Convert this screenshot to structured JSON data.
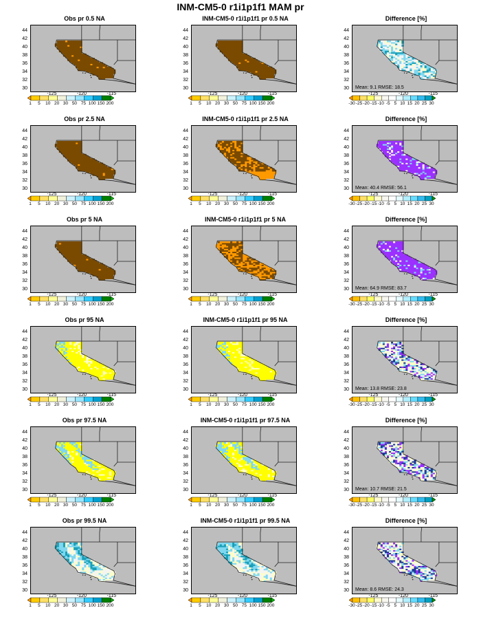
{
  "title": "INM-CM5-0 r1i1p1f1 MAM pr",
  "map_ticks": {
    "lat": [
      "44",
      "42",
      "40",
      "38",
      "36",
      "34",
      "32",
      "30"
    ],
    "lon": [
      "-125",
      "-120",
      "-115"
    ]
  },
  "colorbars": {
    "pr": {
      "labels": [
        "1",
        "5",
        "10",
        "20",
        "30",
        "50",
        "75",
        "100",
        "150",
        "200"
      ],
      "colors": [
        "#ff9900",
        "#ffcc00",
        "#ffe066",
        "#ffff99",
        "#f2f2dc",
        "#ccf2ff",
        "#99e6ff",
        "#33ccff",
        "#00a0d0",
        "#008000",
        "#00b000"
      ]
    },
    "diff": {
      "labels": [
        "-30",
        "-25",
        "-20",
        "-15",
        "-10",
        "-5",
        "5",
        "10",
        "15",
        "20",
        "25",
        "30"
      ],
      "colors": [
        "#ff9900",
        "#ffc000",
        "#ffe066",
        "#ffff66",
        "#fffbd0",
        "#f7f7f0",
        "#ffffff",
        "#e6fbff",
        "#b3efff",
        "#66dcff",
        "#33bbee",
        "#00a0c0",
        "#009000"
      ]
    }
  },
  "colors": {
    "land": "#bdbdbd",
    "brown": "#7a4a00",
    "orange": "#ff9900",
    "yellow": "#ffff00",
    "paleyellow": "#fdfdc8",
    "cyan": "#7fd8f0",
    "teal": "#1aa0b8",
    "purple": "#9b30ff",
    "white": "#f4f4f4",
    "darkblue": "#1f3a9a"
  },
  "rows": [
    {
      "panels": [
        {
          "title": "Obs pr 0.5 NA",
          "scheme": "brown"
        },
        {
          "title": "INM-CM5-0 r1i1p1f1 pr 0.5 NA",
          "scheme": "brown"
        },
        {
          "title": "Difference [%]",
          "scheme": "diff_light",
          "stats": "Mean: 9.1  RMSE: 18.5"
        }
      ]
    },
    {
      "panels": [
        {
          "title": "Obs pr 2.5 NA",
          "scheme": "brown"
        },
        {
          "title": "INM-CM5-0 r1i1p1f1 pr 2.5 NA",
          "scheme": "brown_orange"
        },
        {
          "title": "Difference [%]",
          "scheme": "diff_purple",
          "stats": "Mean: 40.4  RMSE: 56.1"
        }
      ]
    },
    {
      "panels": [
        {
          "title": "Obs pr 5 NA",
          "scheme": "brown"
        },
        {
          "title": "INM-CM5-0 r1i1p1f1 pr 5 NA",
          "scheme": "orange_brown"
        },
        {
          "title": "Difference [%]",
          "scheme": "diff_purple",
          "stats": "Mean: 64.9  RMSE: 83.7"
        }
      ]
    },
    {
      "panels": [
        {
          "title": "Obs pr 95 NA",
          "scheme": "yellow"
        },
        {
          "title": "INM-CM5-0 r1i1p1f1 pr 95 NA",
          "scheme": "yellow"
        },
        {
          "title": "Difference [%]",
          "scheme": "diff_mixed",
          "stats": "Mean: 13.8  RMSE: 23.8"
        }
      ]
    },
    {
      "panels": [
        {
          "title": "Obs pr 97.5 NA",
          "scheme": "yellow_cyan"
        },
        {
          "title": "INM-CM5-0 r1i1p1f1 pr 97.5 NA",
          "scheme": "yellow_cyan"
        },
        {
          "title": "Difference [%]",
          "scheme": "diff_mixed",
          "stats": "Mean: 10.7  RMSE: 21.5"
        }
      ]
    },
    {
      "panels": [
        {
          "title": "Obs pr 99.5 NA",
          "scheme": "cyan_teal"
        },
        {
          "title": "INM-CM5-0 r1i1p1f1 pr 99.5 NA",
          "scheme": "cyan_teal"
        },
        {
          "title": "Difference [%]",
          "scheme": "diff_mixed",
          "stats": "Mean: 8.6  RMSE: 24.3"
        }
      ]
    }
  ]
}
